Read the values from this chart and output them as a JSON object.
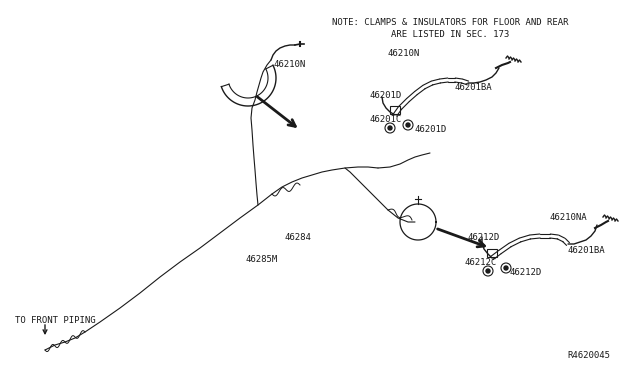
{
  "bg_color": "#ffffff",
  "line_color": "#1a1a1a",
  "note_line1": "NOTE: CLAMPS & INSULATORS FOR FLOOR AND REAR",
  "note_line2": "ARE LISTED IN SEC. 173",
  "diagram_id": "R4620045",
  "font_size": 6.5
}
